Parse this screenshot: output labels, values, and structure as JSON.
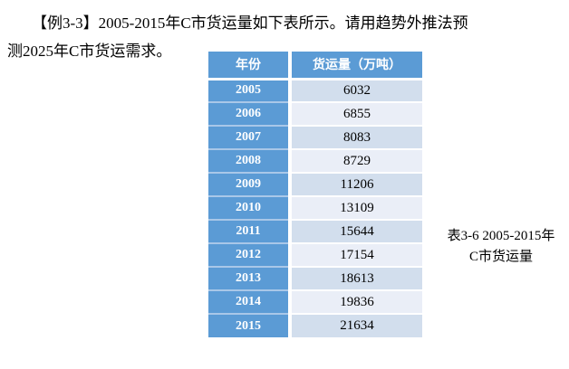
{
  "paragraph": {
    "line1": "【例3-3】2005-2015年C市货运量如下表所示。请用趋势外推法预",
    "line2": "测2025年C市货运需求。"
  },
  "table": {
    "headers": [
      "年份",
      "货运量（万吨）"
    ],
    "rows": [
      {
        "year": "2005",
        "value": "6032"
      },
      {
        "year": "2006",
        "value": "6855"
      },
      {
        "year": "2007",
        "value": "8083"
      },
      {
        "year": "2008",
        "value": "8729"
      },
      {
        "year": "2009",
        "value": "11206"
      },
      {
        "year": "2010",
        "value": "13109"
      },
      {
        "year": "2011",
        "value": "15644"
      },
      {
        "year": "2012",
        "value": "17154"
      },
      {
        "year": "2013",
        "value": "18613"
      },
      {
        "year": "2014",
        "value": "19836"
      },
      {
        "year": "2015",
        "value": "21634"
      }
    ]
  },
  "caption": {
    "line1": "表3-6 2005-2015年",
    "line2": "C市货运量"
  },
  "colors": {
    "header_blue": "#5B9BD5",
    "band_dark": "#D2DEED",
    "band_light": "#EAEEF7",
    "row_separator_year": "#A9C7E8"
  }
}
